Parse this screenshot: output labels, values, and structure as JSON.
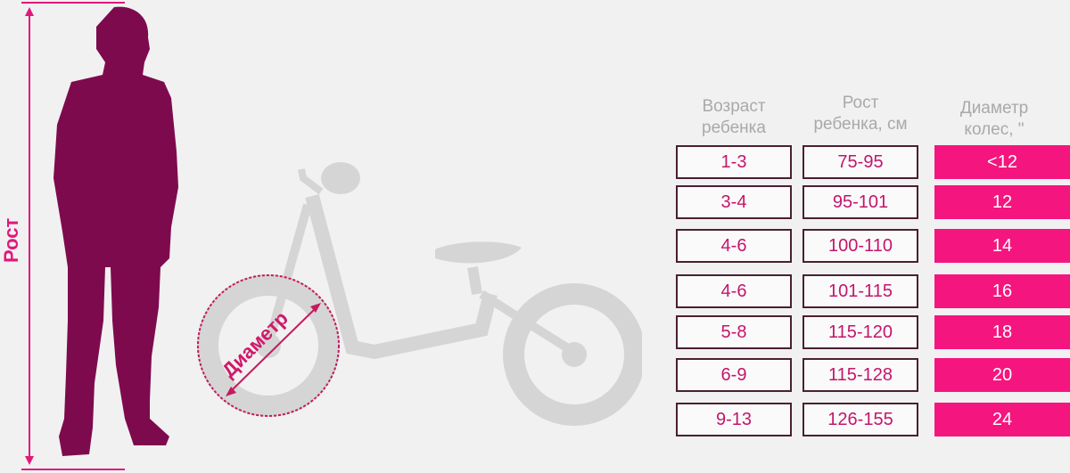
{
  "labels": {
    "height": "Рост",
    "diameter": "Диаметр"
  },
  "colors": {
    "silhouette": "#7e0a4e",
    "accent": "#f5157f",
    "bike": "#d5d5d5",
    "text": "#c4156b"
  },
  "table": {
    "headers": [
      {
        "line1": "Возраст",
        "line2": "ребенка"
      },
      {
        "line1": "Рост",
        "line2": "ребенка, см"
      },
      {
        "line1": "Диаметр",
        "line2": "колес, \""
      }
    ],
    "rows": [
      {
        "age": "1-3",
        "height": "75-95",
        "wheel": "<12"
      },
      {
        "age": "3-4",
        "height": "95-101",
        "wheel": "12"
      },
      {
        "age": "4-6",
        "height": "100-110",
        "wheel": "14"
      },
      {
        "age": "4-6",
        "height": "101-115",
        "wheel": "16"
      },
      {
        "age": "5-8",
        "height": "115-120",
        "wheel": "18"
      },
      {
        "age": "6-9",
        "height": "115-128",
        "wheel": "20"
      },
      {
        "age": "9-13",
        "height": "126-155",
        "wheel": "24"
      }
    ]
  }
}
